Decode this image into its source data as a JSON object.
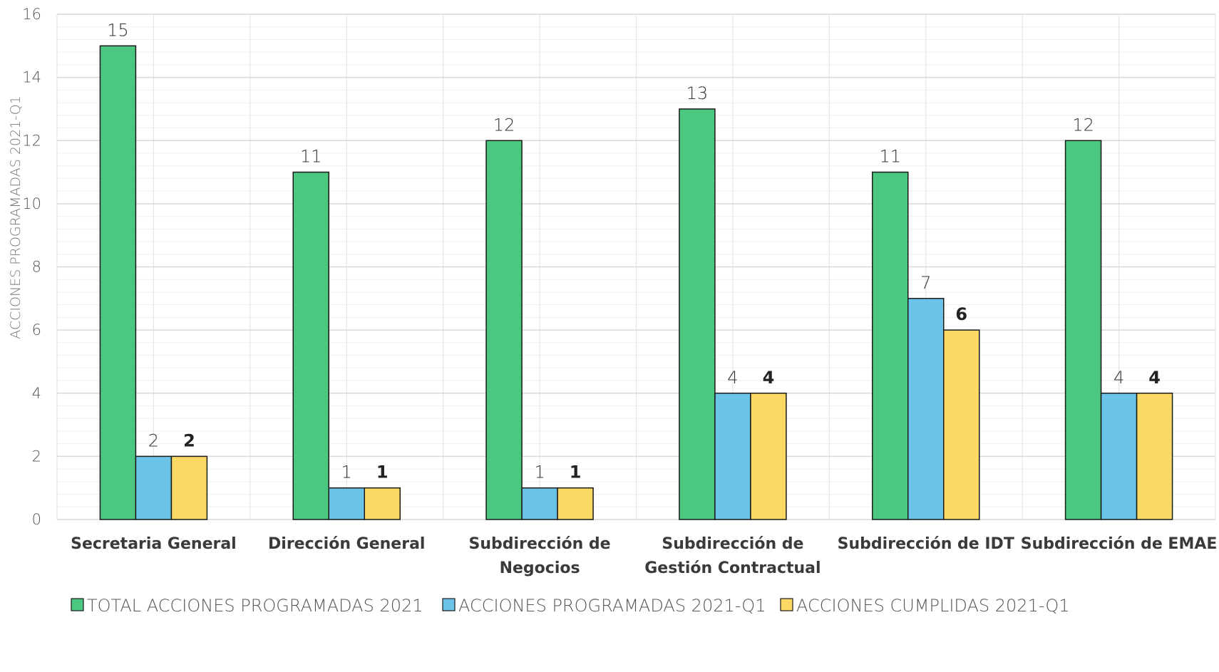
{
  "chart_data": {
    "type": "bar",
    "title": "",
    "xlabel": "",
    "ylabel": "ACCIONES PROGRAMADAS 2021-Q1",
    "ylim": [
      0,
      16
    ],
    "ytick_step": 2,
    "minor_grid_step": 0.4,
    "grid": true,
    "legend_position": "bottom",
    "categories": [
      [
        "Secretaria General"
      ],
      [
        "Dirección General"
      ],
      [
        "Subdirección de",
        "Negocios"
      ],
      [
        "Subdirección de",
        "Gestión Contractual"
      ],
      [
        "Subdirección de IDT"
      ],
      [
        "Subdirección de EMAE"
      ]
    ],
    "series": [
      {
        "name": "TOTAL ACCIONES PROGRAMADAS 2021",
        "color": "#4CC77F",
        "label_bold": false,
        "values": [
          15,
          11,
          12,
          13,
          11,
          12
        ]
      },
      {
        "name": "ACCIONES PROGRAMADAS 2021-Q1",
        "color": "#6BC4E8",
        "label_bold": false,
        "values": [
          2,
          1,
          1,
          4,
          7,
          4
        ]
      },
      {
        "name": "ACCIONES CUMPLIDAS 2021-Q1",
        "color": "#FCD964",
        "label_bold": true,
        "values": [
          2,
          1,
          1,
          4,
          6,
          4
        ]
      }
    ]
  }
}
